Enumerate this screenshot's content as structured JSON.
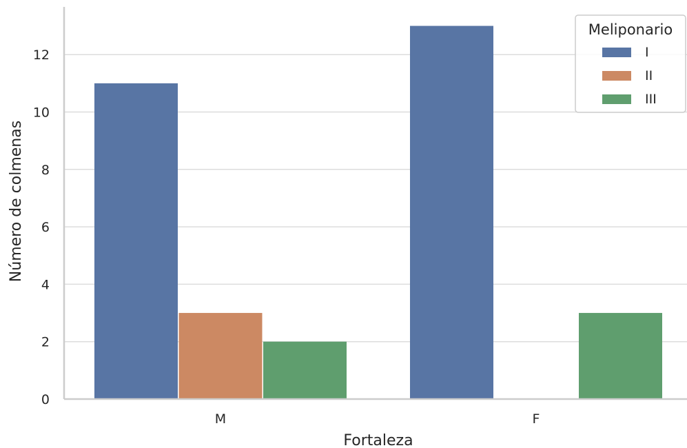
{
  "chart_data": {
    "type": "bar",
    "categories": [
      "M",
      "F"
    ],
    "series": [
      {
        "name": "I",
        "values": [
          11,
          13
        ],
        "color": "#5875a4"
      },
      {
        "name": "II",
        "values": [
          3,
          0
        ],
        "color": "#cc8963"
      },
      {
        "name": "III",
        "values": [
          2,
          3
        ],
        "color": "#5f9e6e"
      }
    ],
    "xlabel": "Fortaleza",
    "ylabel": "Número de colmenas",
    "ylim": [
      0,
      13.65
    ],
    "yticks": [
      0,
      2,
      4,
      6,
      8,
      10,
      12
    ],
    "grid": true,
    "legend": {
      "title": "Meliponario",
      "placement": "top-right"
    }
  }
}
